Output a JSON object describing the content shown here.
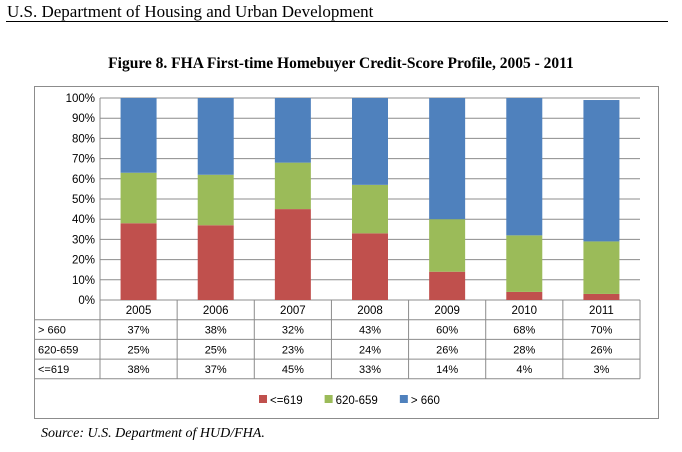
{
  "document_header": "U.S. Department of Housing and Urban Development",
  "source_note": "Source: U.S. Department of HUD/FHA.",
  "colors": {
    "le619": "#c0504d",
    "mid": "#9bbb59",
    "gt660": "#4f81bd"
  },
  "chart_data": {
    "type": "bar",
    "stacked": true,
    "percent": true,
    "title": "Figure 8. FHA First-time Homebuyer Credit-Score Profile, 2005 - 2011",
    "xlabel": "",
    "ylabel": "",
    "ylim": [
      0,
      100
    ],
    "yticks": [
      "0%",
      "10%",
      "20%",
      "30%",
      "40%",
      "50%",
      "60%",
      "70%",
      "80%",
      "90%",
      "100%"
    ],
    "grid": true,
    "legend_position": "bottom",
    "categories": [
      "2005",
      "2006",
      "2007",
      "2008",
      "2009",
      "2010",
      "2011"
    ],
    "series": [
      {
        "name": "<=619",
        "values": [
          38,
          37,
          45,
          33,
          14,
          4,
          3
        ],
        "labels": [
          "38%",
          "37%",
          "45%",
          "33%",
          "14%",
          "4%",
          "3%"
        ]
      },
      {
        "name": "620-659",
        "values": [
          25,
          25,
          23,
          24,
          26,
          28,
          26
        ],
        "labels": [
          "25%",
          "25%",
          "23%",
          "24%",
          "26%",
          "28%",
          "26%"
        ]
      },
      {
        "name": "> 660",
        "values": [
          37,
          38,
          32,
          43,
          60,
          68,
          70
        ],
        "labels": [
          "37%",
          "38%",
          "32%",
          "43%",
          "60%",
          "68%",
          "70%"
        ]
      }
    ],
    "table_row_order": [
      2,
      1,
      0
    ],
    "legend_order": [
      0,
      1,
      2
    ]
  }
}
